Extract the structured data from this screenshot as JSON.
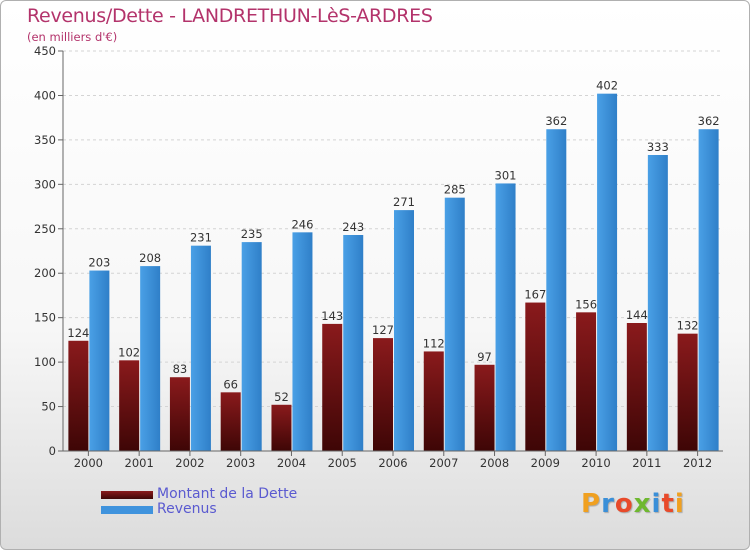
{
  "title": "Revenus/Dette - LANDRETHUN-LèS-ARDRES",
  "subtitle": "(en milliers d'€)",
  "logo": {
    "letters": [
      "P",
      "r",
      "o",
      "x",
      "i",
      "t",
      "i"
    ],
    "colors": [
      "#f0a020",
      "#3a8fd8",
      "#e84a2a",
      "#6fb830",
      "#3a8fd8",
      "#e84a2a",
      "#f0a020"
    ]
  },
  "chart_data": {
    "type": "bar",
    "categories": [
      "2000",
      "2001",
      "2002",
      "2003",
      "2004",
      "2005",
      "2006",
      "2007",
      "2008",
      "2009",
      "2010",
      "2011",
      "2012"
    ],
    "series": [
      {
        "name": "Montant de la Dette",
        "color": "#7a1416",
        "values": [
          124,
          102,
          83,
          66,
          52,
          143,
          127,
          112,
          97,
          167,
          156,
          144,
          132
        ]
      },
      {
        "name": "Revenus",
        "color": "#3f93dd",
        "values": [
          203,
          208,
          231,
          235,
          246,
          243,
          271,
          285,
          301,
          362,
          402,
          333,
          362
        ]
      }
    ],
    "ylim": [
      0,
      450
    ],
    "yticks": [
      0,
      50,
      100,
      150,
      200,
      250,
      300,
      350,
      400,
      450
    ],
    "grid": true,
    "legend_position": "bottom-left"
  }
}
